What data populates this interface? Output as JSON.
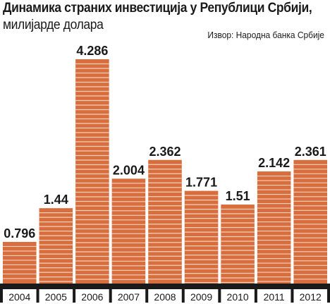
{
  "header": {
    "title": "Динамика страних инвестиција у Републици Србији,",
    "subtitle": "милијарде долара",
    "source": "Извор: Народна банка Србије"
  },
  "colors": {
    "bar_fill": "#d86e3d",
    "bar_stripe": "#f3d0bd",
    "axis_band": "#1a1a1a",
    "text": "#1a1a1a"
  },
  "chart_data": {
    "type": "bar",
    "title": "Динамика страних инвестиција у Републици Србији,",
    "subtitle": "милијарде долара",
    "categories": [
      "2004",
      "2005",
      "2006",
      "2007",
      "2008",
      "2009",
      "2010",
      "2011",
      "2012"
    ],
    "values": [
      0.796,
      1.44,
      4.286,
      2.004,
      2.362,
      1.771,
      1.51,
      2.142,
      2.361
    ],
    "value_labels": [
      "0.796",
      "1.44",
      "4.286",
      "2.004",
      "2.362",
      "1.771",
      "1.51",
      "2.142",
      "2.361"
    ],
    "xlabel": "",
    "ylabel": "",
    "ylim": [
      0,
      4.286
    ],
    "grid": false,
    "legend": "none"
  }
}
